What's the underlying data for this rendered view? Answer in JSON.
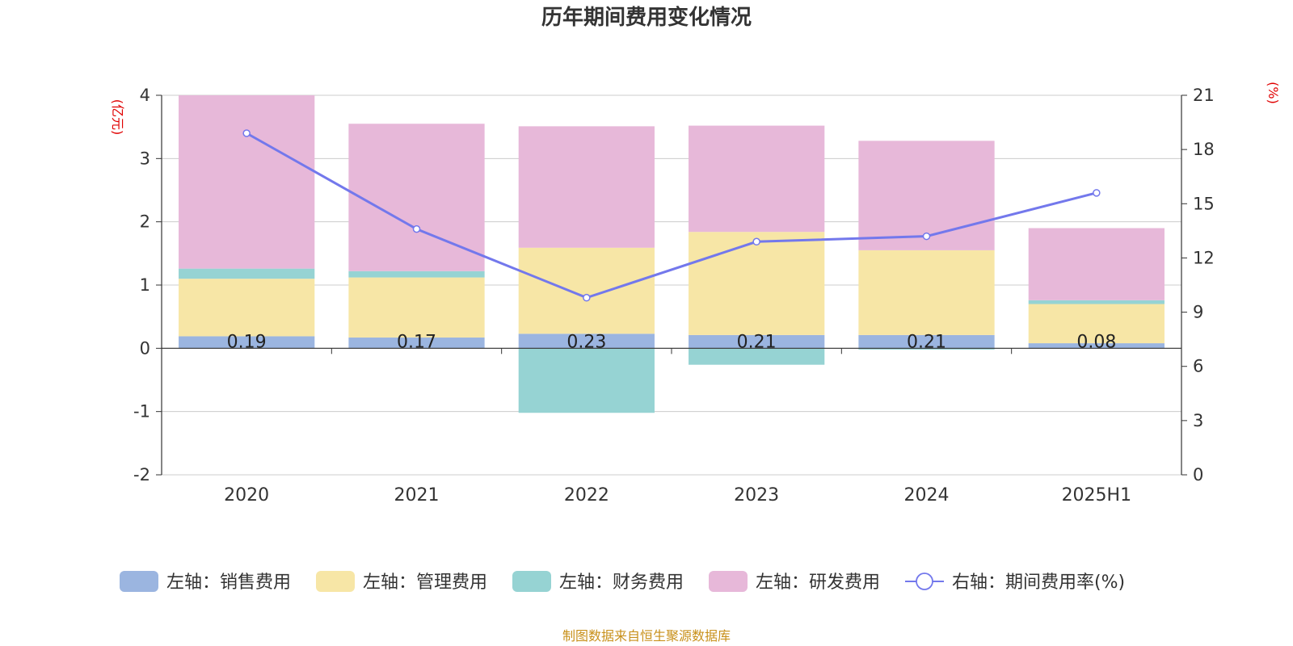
{
  "chart_data": {
    "type": "bar",
    "title": "历年期间费用变化情况",
    "categories": [
      "2020",
      "2021",
      "2022",
      "2023",
      "2024",
      "2025H1"
    ],
    "left_axis": {
      "unit": "(亿元)",
      "ylim": [
        -2,
        4
      ],
      "ticks": [
        -2,
        -1,
        0,
        1,
        2,
        3,
        4
      ]
    },
    "right_axis": {
      "unit": "(%)",
      "ylim": [
        0,
        21
      ],
      "ticks": [
        0,
        3,
        6,
        9,
        12,
        15,
        18,
        21
      ]
    },
    "series": [
      {
        "name": "左轴：销售费用",
        "axis": "left",
        "type": "bar",
        "color": "#9bb5e0",
        "values": [
          0.19,
          0.17,
          0.23,
          0.21,
          0.21,
          0.08
        ]
      },
      {
        "name": "左轴：管理费用",
        "axis": "left",
        "type": "bar",
        "color": "#f7e6a6",
        "values": [
          0.91,
          0.95,
          1.36,
          1.63,
          1.34,
          0.62
        ]
      },
      {
        "name": "左轴：财务费用",
        "axis": "left",
        "type": "bar",
        "color": "#96d3d3",
        "values": [
          0.16,
          0.1,
          -1.02,
          -0.26,
          -0.02,
          0.06
        ]
      },
      {
        "name": "左轴：研发费用",
        "axis": "left",
        "type": "bar",
        "color": "#e7b8d9",
        "values": [
          2.74,
          2.33,
          1.92,
          1.68,
          1.73,
          1.14
        ]
      },
      {
        "name": "右轴：期间费用率(%)",
        "axis": "right",
        "type": "line",
        "color": "#7378ec",
        "values": [
          18.9,
          13.6,
          9.8,
          12.9,
          13.2,
          15.6
        ]
      }
    ],
    "data_labels": [
      "0.19",
      "0.17",
      "0.23",
      "0.21",
      "0.21",
      "0.08"
    ],
    "grid": true,
    "legend_position": "bottom"
  },
  "source": "制图数据来自恒生聚源数据库"
}
